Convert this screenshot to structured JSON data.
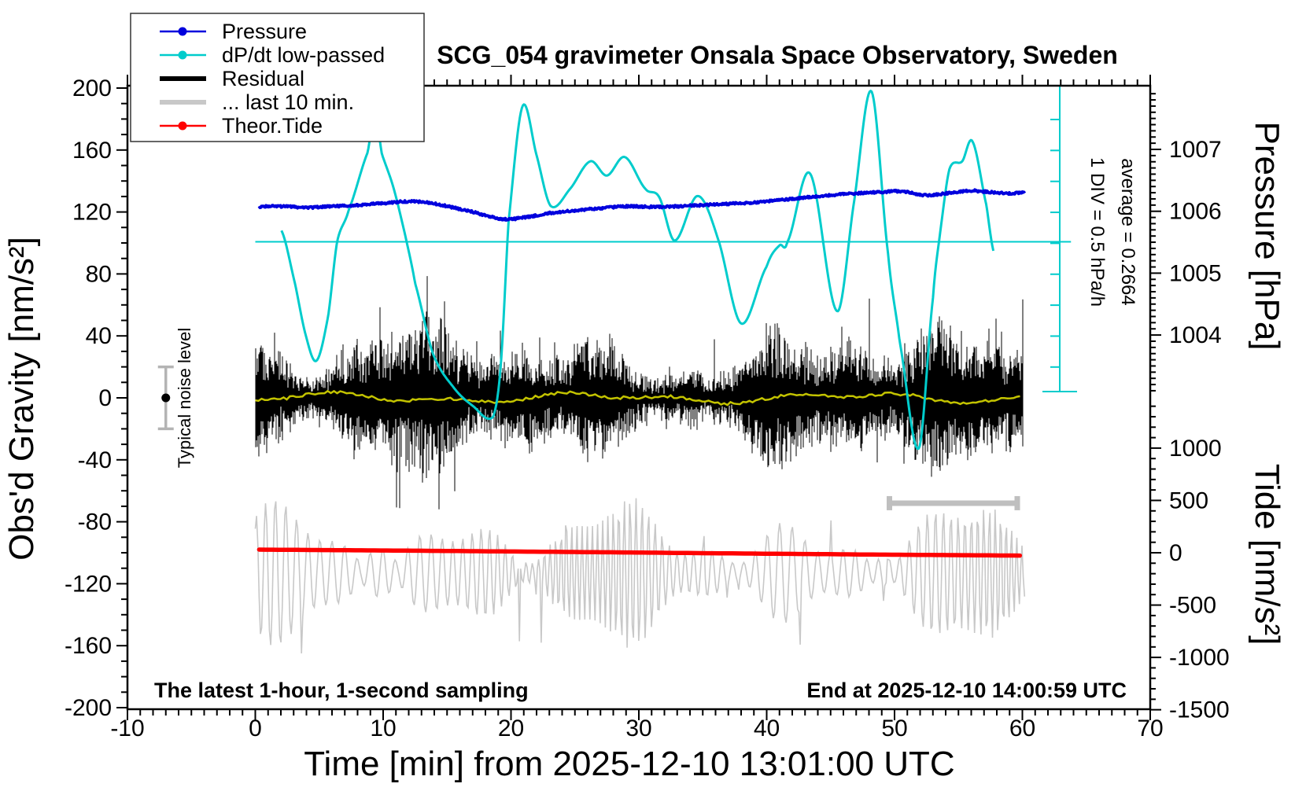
{
  "title": "SCG_054 gravimeter Onsala Space Observatory, Sweden",
  "footer_left": "The latest 1-hour, 1-second sampling",
  "footer_right": "End at 2025-12-10 14:00:59 UTC",
  "annotations": {
    "div_scale_label": "1 DIV = 0.5 hPa/h",
    "average_label": "average = 0.2664",
    "noise_label": "Typical noise level"
  },
  "axes": {
    "x": {
      "label": "Time [min] from 2025-12-10 13:01:00 UTC",
      "min": -10,
      "max": 70,
      "major_tick_step": 10,
      "minor_tick_step": 1,
      "major_tick_labels": [
        "-10",
        "0",
        "10",
        "20",
        "30",
        "40",
        "50",
        "60",
        "70"
      ]
    },
    "gravity": {
      "label": "Obs'd Gravity [nm/s²]",
      "min": -200,
      "max": 200,
      "major_tick_step": 40,
      "minor_tick_step": 10,
      "major_tick_labels": [
        "200",
        "160",
        "120",
        "80",
        "40",
        "0",
        "-40",
        "-80",
        "-120",
        "-160",
        "-200"
      ]
    },
    "pressure": {
      "label": "Pressure [hPa]",
      "min": 1003,
      "max": 1008,
      "major_tick_step": 1,
      "minor_tick_step": 0.1,
      "major_tick_labels": [
        "1007",
        "1006",
        "1005",
        "1004"
      ]
    },
    "tide": {
      "label": "Tide [nm/s²]",
      "min": -1500,
      "max": 1500,
      "major_tick_step": 500,
      "minor_tick_step": 100,
      "major_tick_labels": [
        "1000",
        "500",
        "0",
        "-500",
        "-1000",
        "-1500"
      ]
    }
  },
  "legend": {
    "items": [
      {
        "label": "Pressure",
        "color": "#0000dd",
        "thick": false,
        "marker": true
      },
      {
        "label": "dP/dt low-passed",
        "color": "#00cccc",
        "thick": false,
        "marker": true
      },
      {
        "label": "Residual",
        "color": "#000000",
        "thick": true,
        "marker": false
      },
      {
        "label": "... last 10 min.",
        "color": "#c8c8c8",
        "thick": true,
        "marker": false
      },
      {
        "label": "Theor.Tide",
        "color": "#ff0000",
        "thick": false,
        "marker": true
      }
    ]
  },
  "colors": {
    "pressure": "#0000dd",
    "dpdt": "#00cccc",
    "residual": "#000000",
    "residual_smoothed": "#c3c300",
    "last10min": "#c8c8c8",
    "tide": "#ff0000",
    "noise_bar": "#b4b4b4",
    "scalebar": "#bfbfbf",
    "frame": "#000000"
  },
  "chart_data": {
    "type": "line",
    "title": "SCG_054 gravimeter Onsala Space Observatory, Sweden",
    "xlabel": "Time [min] from 2025-12-10 13:01:00 UTC",
    "x_range_min": [
      -10,
      70
    ],
    "series": [
      {
        "name": "Pressure",
        "axis": "pressure",
        "unit": "hPa",
        "color": "#0000dd",
        "points": [
          [
            0,
            1006.07
          ],
          [
            2,
            1006.08
          ],
          [
            4,
            1006.06
          ],
          [
            6,
            1006.08
          ],
          [
            8,
            1006.1
          ],
          [
            10,
            1006.13
          ],
          [
            12,
            1006.16
          ],
          [
            13.5,
            1006.14
          ],
          [
            15,
            1006.08
          ],
          [
            17,
            1005.99
          ],
          [
            18.5,
            1005.91
          ],
          [
            19.6,
            1005.87
          ],
          [
            21,
            1005.9
          ],
          [
            23,
            1005.97
          ],
          [
            25,
            1006.01
          ],
          [
            27,
            1006.05
          ],
          [
            29,
            1006.08
          ],
          [
            31,
            1006.07
          ],
          [
            33,
            1006.08
          ],
          [
            35,
            1006.1
          ],
          [
            37,
            1006.12
          ],
          [
            39,
            1006.14
          ],
          [
            41,
            1006.18
          ],
          [
            43,
            1006.22
          ],
          [
            45,
            1006.26
          ],
          [
            47,
            1006.29
          ],
          [
            49,
            1006.31
          ],
          [
            50.5,
            1006.32
          ],
          [
            52.5,
            1006.26
          ],
          [
            54,
            1006.29
          ],
          [
            56,
            1006.33
          ],
          [
            57.5,
            1006.31
          ],
          [
            59,
            1006.29
          ],
          [
            60,
            1006.3
          ]
        ]
      },
      {
        "name": "dP/dt low-passed",
        "axis": "dpdt",
        "unit": "hPa/h",
        "color": "#00cccc",
        "div_value_hpa_per_h": 0.5,
        "average_hpa_per_h": 0.2664,
        "points": [
          [
            2.05,
            0.18
          ],
          [
            3.1,
            -0.67
          ],
          [
            4.0,
            -1.55
          ],
          [
            4.8,
            -1.92
          ],
          [
            5.7,
            -1.2
          ],
          [
            6.4,
            0.0
          ],
          [
            7.3,
            0.51
          ],
          [
            8.8,
            1.45
          ],
          [
            9.4,
            2.0
          ],
          [
            9.9,
            1.42
          ],
          [
            10.8,
            0.88
          ],
          [
            11.7,
            0.13
          ],
          [
            12.5,
            -0.67
          ],
          [
            13.9,
            -1.81
          ],
          [
            15.5,
            -2.35
          ],
          [
            17.0,
            -2.65
          ],
          [
            18.6,
            -2.83
          ],
          [
            19.2,
            -2.0
          ],
          [
            19.8,
            0.3
          ],
          [
            20.9,
            2.19
          ],
          [
            22.0,
            1.4
          ],
          [
            23.1,
            0.58
          ],
          [
            24.6,
            0.85
          ],
          [
            26.2,
            1.3
          ],
          [
            27.5,
            1.07
          ],
          [
            28.9,
            1.37
          ],
          [
            30.5,
            0.86
          ],
          [
            31.6,
            0.72
          ],
          [
            32.8,
            0.02
          ],
          [
            34.6,
            0.74
          ],
          [
            36.2,
            0.04
          ],
          [
            38.0,
            -1.32
          ],
          [
            40.0,
            -0.4
          ],
          [
            41.0,
            -0.06
          ],
          [
            41.6,
            -0.01
          ],
          [
            43.4,
            1.1
          ],
          [
            45.5,
            -1.12
          ],
          [
            46.8,
            0.6
          ],
          [
            48.2,
            2.43
          ],
          [
            49.5,
            -0.2
          ],
          [
            50.4,
            -1.61
          ],
          [
            51.9,
            -3.34
          ],
          [
            53.0,
            -0.93
          ],
          [
            53.6,
            0.2
          ],
          [
            54.3,
            1.18
          ],
          [
            55.3,
            1.3
          ],
          [
            56.1,
            1.62
          ],
          [
            57.2,
            0.58
          ],
          [
            57.8,
            -0.2
          ]
        ]
      },
      {
        "name": "Residual",
        "axis": "gravity",
        "unit": "nm/s2",
        "color": "#000000",
        "time_span_min": [
          0,
          60
        ],
        "mean": 0,
        "typical_amplitude": 30,
        "max_excursion": 85,
        "smoothed_line": {
          "color": "#c3c300",
          "mean": 0,
          "amplitude": 3
        }
      },
      {
        "name": "... last 10 min.",
        "axis": "gravity",
        "unit": "nm/s2",
        "color": "#c8c8c8",
        "window_minutes": [
          50,
          60
        ],
        "display_center": -113,
        "oscillation_period_s": 9,
        "amplitude_range": [
          10,
          60
        ],
        "extreme_excursion": -165
      },
      {
        "name": "Theor.Tide",
        "axis": "tide",
        "unit": "nm/s2",
        "color": "#ff0000",
        "points": [
          [
            0,
            30
          ],
          [
            6,
            25
          ],
          [
            12,
            20
          ],
          [
            18,
            14
          ],
          [
            24,
            8
          ],
          [
            30,
            2
          ],
          [
            36,
            -5
          ],
          [
            42,
            -11
          ],
          [
            48,
            -17
          ],
          [
            54,
            -22
          ],
          [
            60,
            -27
          ]
        ]
      }
    ],
    "noise_level_bar": {
      "label": "Typical noise level",
      "x_min": -7,
      "center": 0,
      "half_height": 20
    },
    "ten_minute_scalebar": {
      "x_min_start": 49.6,
      "x_min_end": 59.6,
      "gravity_y": -68
    },
    "dpdt_zero_line": {
      "value": 0,
      "x_min_start": 0,
      "x_min_end": 63.8
    },
    "legend_position": "top-left",
    "grid": false
  }
}
